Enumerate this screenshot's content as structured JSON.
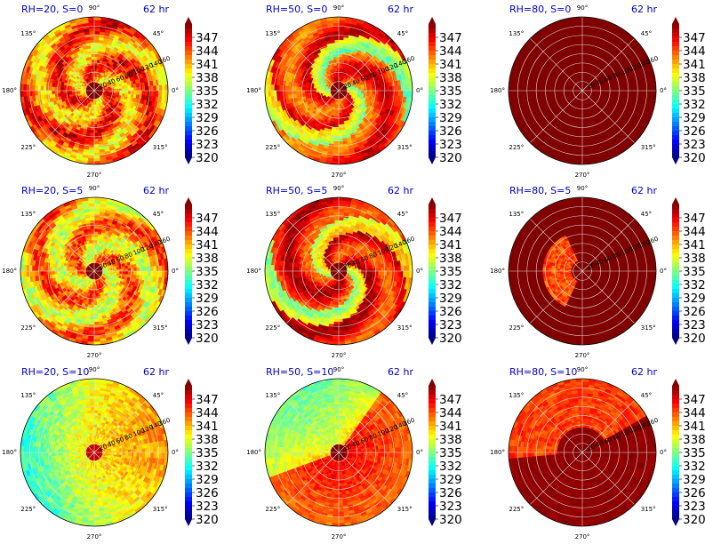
{
  "figure": {
    "time_label": "62 hr",
    "angle_labels": [
      "90°",
      "45°",
      "0°",
      "315°",
      "270°",
      "225°",
      "180°",
      "135°"
    ],
    "radial_labels": [
      "20",
      "40",
      "60",
      "80",
      "100",
      "120",
      "140",
      "160"
    ],
    "colorbar_ticks": [
      "347",
      "344",
      "341",
      "338",
      "335",
      "332",
      "329",
      "326",
      "323",
      "320"
    ],
    "colormap": "jet",
    "grid_color": "#d9d9d9"
  },
  "chart_data": [
    {
      "type": "heatmap",
      "projection": "polar",
      "title": "RH=20, S=0",
      "rlim": [
        0,
        160
      ],
      "clim": [
        320,
        350
      ],
      "mean_value": 343,
      "core_value": 350,
      "pattern": "spiral"
    },
    {
      "type": "heatmap",
      "projection": "polar",
      "title": "RH=50, S=0",
      "rlim": [
        0,
        160
      ],
      "clim": [
        320,
        350
      ],
      "mean_value": 345,
      "core_value": 350,
      "pattern": "spiral-bands"
    },
    {
      "type": "heatmap",
      "projection": "polar",
      "title": "RH=80, S=0",
      "rlim": [
        0,
        160
      ],
      "clim": [
        320,
        350
      ],
      "mean_value": 350,
      "core_value": 350,
      "pattern": "uniform"
    },
    {
      "type": "heatmap",
      "projection": "polar",
      "title": "RH=20, S=5",
      "rlim": [
        0,
        160
      ],
      "clim": [
        320,
        350
      ],
      "mean_value": 341,
      "core_value": 350,
      "pattern": "spiral"
    },
    {
      "type": "heatmap",
      "projection": "polar",
      "title": "RH=50, S=5",
      "rlim": [
        0,
        160
      ],
      "clim": [
        320,
        350
      ],
      "mean_value": 346,
      "core_value": 350,
      "pattern": "spiral-bands"
    },
    {
      "type": "heatmap",
      "projection": "polar",
      "title": "RH=80, S=5",
      "rlim": [
        0,
        160
      ],
      "clim": [
        320,
        350
      ],
      "mean_value": 350,
      "core_value": 350,
      "pattern": "patch-west"
    },
    {
      "type": "heatmap",
      "projection": "polar",
      "title": "RH=20, S=10",
      "rlim": [
        0,
        160
      ],
      "clim": [
        320,
        350
      ],
      "mean_value": 340,
      "core_value": 348,
      "pattern": "broad"
    },
    {
      "type": "heatmap",
      "projection": "polar",
      "title": "RH=50, S=10",
      "rlim": [
        0,
        160
      ],
      "clim": [
        320,
        350
      ],
      "mean_value": 343,
      "core_value": 350,
      "pattern": "split-nw-dry"
    },
    {
      "type": "heatmap",
      "projection": "polar",
      "title": "RH=80, S=10",
      "rlim": [
        0,
        160
      ],
      "clim": [
        320,
        350
      ],
      "mean_value": 349,
      "core_value": 350,
      "pattern": "patch-north"
    }
  ]
}
